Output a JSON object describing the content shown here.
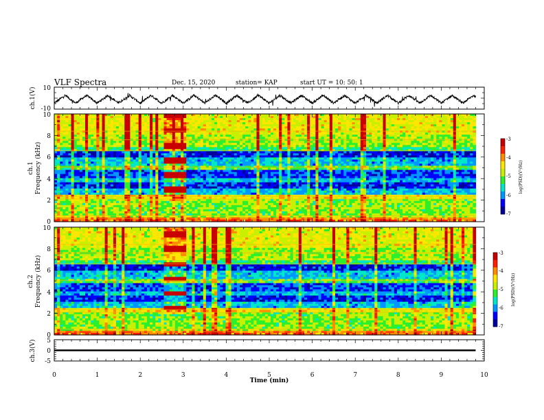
{
  "header": {
    "title": "VLF Spectra",
    "date": "Dec. 15, 2020",
    "station": "station= KAP",
    "start": "start  UT =   10: 50: 1"
  },
  "colors": {
    "spectrogram_scale": [
      "#00009a",
      "#0000ff",
      "#0096ff",
      "#00e6c8",
      "#2cf02c",
      "#c8f000",
      "#ffe600",
      "#ff8c00",
      "#ff1e00",
      "#c80000"
    ],
    "trace": "#000000",
    "axis": "#000000"
  },
  "chart_data": [
    {
      "id": "ch1-waveform",
      "type": "line",
      "ylabel": "ch.1(V)",
      "ylim": [
        -10,
        10
      ],
      "yticks": [
        "10",
        "-10"
      ],
      "xlim": [
        0,
        10
      ],
      "description_visible": "oscillating trace, roughly 0.5 min period",
      "period_min": 0.5,
      "amplitude_v": 3.5,
      "offset_v": -1,
      "data_end_min": 9.8
    },
    {
      "id": "ch1-spectrogram",
      "type": "heatmap",
      "ylabel": "ch.1",
      "ylabel2": "Frequency  (kHz)",
      "ylim": [
        0,
        10
      ],
      "yticks": [
        "0",
        "2",
        "4",
        "6",
        "8",
        "10"
      ],
      "xlim": [
        0,
        10
      ],
      "data_end_min": 9.8,
      "colorbar": {
        "label": "log(PSD)(V²/Hz)",
        "range": [
          -7,
          -3
        ],
        "ticks": [
          "-3",
          "-4",
          "-5",
          "-6",
          "-7"
        ]
      }
    },
    {
      "id": "ch2-spectrogram",
      "type": "heatmap",
      "ylabel": "ch.2",
      "ylabel2": "Frequency  (kHz)",
      "ylim": [
        0,
        10
      ],
      "yticks": [
        "0",
        "2",
        "4",
        "6",
        "8",
        "10"
      ],
      "xlim": [
        0,
        10
      ],
      "data_end_min": 9.8,
      "colorbar": {
        "label": "log(PSD)(V²/Hz)",
        "range": [
          -7,
          -3
        ],
        "ticks": [
          "-3",
          "-4",
          "-5",
          "-6",
          "-7"
        ]
      }
    },
    {
      "id": "ch3-waveform",
      "type": "line",
      "ylabel": "ch.3(V)",
      "ylim": [
        -5,
        5
      ],
      "yticks": [
        "5",
        "0",
        "-5"
      ],
      "xlim": [
        0,
        10
      ],
      "xlabel": "Time  (min)",
      "xticks": [
        "0",
        "1",
        "2",
        "3",
        "4",
        "5",
        "6",
        "7",
        "8",
        "9",
        "10"
      ],
      "level_v": [
        -0.4,
        0.4
      ],
      "data_end_min": 9.8
    }
  ]
}
